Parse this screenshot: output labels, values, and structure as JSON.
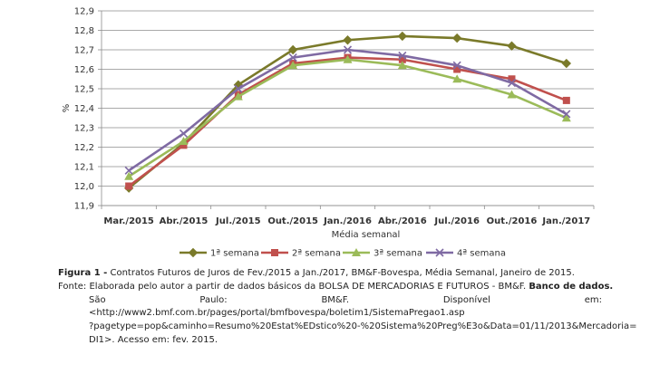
{
  "chart_data": {
    "type": "line",
    "categories": [
      "Mar./2015",
      "Abr./2015",
      "Jul./2015",
      "Out./2015",
      "Jan./2016",
      "Abr./2016",
      "Jul./2016",
      "Out./2016",
      "Jan./2017"
    ],
    "series": [
      {
        "name": "1ª semana",
        "color": "#7a7a2a",
        "marker": "diamond",
        "values": [
          11.99,
          12.22,
          12.52,
          12.7,
          12.75,
          12.77,
          12.76,
          12.72,
          12.63
        ]
      },
      {
        "name": "2ª semana",
        "color": "#c0504d",
        "marker": "square",
        "values": [
          12.0,
          12.21,
          12.47,
          12.63,
          12.66,
          12.65,
          12.6,
          12.55,
          12.44
        ]
      },
      {
        "name": "3ª semana",
        "color": "#9bbb59",
        "marker": "triangle",
        "values": [
          12.05,
          12.23,
          12.46,
          12.62,
          12.65,
          12.62,
          12.55,
          12.47,
          12.35
        ]
      },
      {
        "name": "4ª semana",
        "color": "#7f6aa3",
        "marker": "x",
        "values": [
          12.08,
          12.27,
          12.5,
          12.66,
          12.7,
          12.67,
          12.62,
          12.53,
          12.37
        ]
      }
    ],
    "yticks": [
      "12,9",
      "12,8",
      "12,7",
      "12,6",
      "12,5",
      "12,4",
      "12,3",
      "12,2",
      "12,1",
      "12,0",
      "11,9"
    ],
    "ylim": [
      11.9,
      12.9
    ],
    "ylabel": "%",
    "xlabel": "Média semanal",
    "grid": true,
    "legend_position": "bottom"
  },
  "caption": {
    "figure_label": "Figura 1 -",
    "figure_text": "Contratos Futuros de Juros de Fev./2015 a Jan./2017, BM&F-Bovespa, Média Semanal, Janeiro de 2015.",
    "source_label": "Fonte:",
    "source_text": "Elaborada pelo autor a partir de dados básicos da BOLSA DE MERCADORIAS E FUTUROS - BM&F.",
    "source_bold": "Banco de dados.",
    "justify_words": [
      "São",
      "Paulo:",
      "BM&F.",
      "Disponível",
      "em:"
    ],
    "url_line1": "<http://www2.bmf.com.br/pages/portal/bmfbovespa/boletim1/SistemaPregao1.asp",
    "url_line2": "?pagetype=pop&caminho=Resumo%20Estat%EDstico%20-%20Sistema%20Preg%E3o&Data=01/11/2013&Mercadoria=",
    "url_line3": "DI1>. Acesso em: fev. 2015."
  }
}
